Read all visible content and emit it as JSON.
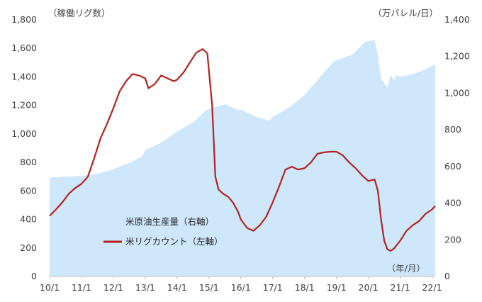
{
  "chart_data": {
    "type": "line+area",
    "left_axis": {
      "label": "（稼働リグ数）",
      "ticks": [
        "0",
        "200",
        "400",
        "600",
        "800",
        "1,000",
        "1,200",
        "1,400",
        "1,600",
        "1,800"
      ],
      "min": 0,
      "max": 1800
    },
    "right_axis": {
      "label": "（万バレル/日）",
      "ticks": [
        "0",
        "200",
        "400",
        "600",
        "800",
        "1,000",
        "1,200",
        "1,400"
      ],
      "min": 0,
      "max": 1400
    },
    "x_axis": {
      "unit_label": "（年/月）",
      "ticks": [
        "10/1",
        "11/1",
        "12/1",
        "13/1",
        "14/1",
        "15/1",
        "16/1",
        "17/1",
        "18/1",
        "19/1",
        "20/1",
        "21/1",
        "22/1"
      ]
    },
    "legend": {
      "placement": "lower-left",
      "items": [
        "米原油生産量（右軸）",
        "米リグカウント（左軸）"
      ]
    },
    "colors": {
      "production_area": "#cfe7fb",
      "rig_line": "#b3221c"
    },
    "series": [
      {
        "name": "米原油生産量（右軸）",
        "axis": "right",
        "kind": "area",
        "points": [
          [
            2010.0,
            540
          ],
          [
            2010.5,
            545
          ],
          [
            2011.0,
            548
          ],
          [
            2011.5,
            560
          ],
          [
            2012.0,
            585
          ],
          [
            2012.5,
            620
          ],
          [
            2012.9,
            655
          ],
          [
            2013.0,
            690
          ],
          [
            2013.5,
            730
          ],
          [
            2014.0,
            790
          ],
          [
            2014.5,
            840
          ],
          [
            2014.9,
            905
          ],
          [
            2015.0,
            915
          ],
          [
            2015.5,
            940
          ],
          [
            2015.9,
            910
          ],
          [
            2016.0,
            910
          ],
          [
            2016.5,
            870
          ],
          [
            2016.9,
            850
          ],
          [
            2017.0,
            870
          ],
          [
            2017.5,
            920
          ],
          [
            2017.9,
            975
          ],
          [
            2018.0,
            990
          ],
          [
            2018.5,
            1090
          ],
          [
            2018.9,
            1170
          ],
          [
            2019.0,
            1180
          ],
          [
            2019.5,
            1210
          ],
          [
            2019.9,
            1280
          ],
          [
            2020.2,
            1290
          ],
          [
            2020.3,
            1210
          ],
          [
            2020.4,
            1080
          ],
          [
            2020.6,
            1030
          ],
          [
            2020.7,
            1100
          ],
          [
            2020.8,
            1070
          ],
          [
            2020.9,
            1100
          ],
          [
            2021.0,
            1090
          ],
          [
            2021.3,
            1100
          ],
          [
            2021.5,
            1110
          ],
          [
            2021.8,
            1130
          ],
          [
            2022.0,
            1150
          ],
          [
            2022.1,
            1160
          ]
        ]
      },
      {
        "name": "米リグカウント（左軸）",
        "axis": "left",
        "kind": "line",
        "points": [
          [
            2010.0,
            425
          ],
          [
            2010.2,
            470
          ],
          [
            2010.4,
            520
          ],
          [
            2010.6,
            580
          ],
          [
            2010.8,
            620
          ],
          [
            2011.0,
            650
          ],
          [
            2011.2,
            700
          ],
          [
            2011.4,
            830
          ],
          [
            2011.6,
            970
          ],
          [
            2011.8,
            1070
          ],
          [
            2012.0,
            1180
          ],
          [
            2012.2,
            1300
          ],
          [
            2012.4,
            1370
          ],
          [
            2012.6,
            1420
          ],
          [
            2012.8,
            1410
          ],
          [
            2013.0,
            1390
          ],
          [
            2013.1,
            1320
          ],
          [
            2013.3,
            1350
          ],
          [
            2013.5,
            1410
          ],
          [
            2013.7,
            1390
          ],
          [
            2013.9,
            1370
          ],
          [
            2014.0,
            1380
          ],
          [
            2014.2,
            1430
          ],
          [
            2014.4,
            1500
          ],
          [
            2014.6,
            1570
          ],
          [
            2014.8,
            1595
          ],
          [
            2014.95,
            1565
          ],
          [
            2015.1,
            1200
          ],
          [
            2015.2,
            700
          ],
          [
            2015.3,
            610
          ],
          [
            2015.45,
            580
          ],
          [
            2015.6,
            560
          ],
          [
            2015.75,
            520
          ],
          [
            2015.9,
            460
          ],
          [
            2016.0,
            400
          ],
          [
            2016.2,
            340
          ],
          [
            2016.4,
            320
          ],
          [
            2016.6,
            360
          ],
          [
            2016.8,
            420
          ],
          [
            2017.0,
            520
          ],
          [
            2017.2,
            630
          ],
          [
            2017.4,
            750
          ],
          [
            2017.6,
            770
          ],
          [
            2017.8,
            750
          ],
          [
            2018.0,
            760
          ],
          [
            2018.2,
            800
          ],
          [
            2018.4,
            860
          ],
          [
            2018.6,
            870
          ],
          [
            2018.8,
            875
          ],
          [
            2019.0,
            875
          ],
          [
            2019.2,
            850
          ],
          [
            2019.4,
            800
          ],
          [
            2019.6,
            760
          ],
          [
            2019.8,
            710
          ],
          [
            2020.0,
            670
          ],
          [
            2020.2,
            680
          ],
          [
            2020.3,
            600
          ],
          [
            2020.4,
            400
          ],
          [
            2020.5,
            250
          ],
          [
            2020.6,
            190
          ],
          [
            2020.7,
            180
          ],
          [
            2020.8,
            195
          ],
          [
            2021.0,
            250
          ],
          [
            2021.2,
            320
          ],
          [
            2021.4,
            360
          ],
          [
            2021.6,
            390
          ],
          [
            2021.8,
            440
          ],
          [
            2022.0,
            470
          ],
          [
            2022.1,
            495
          ]
        ]
      }
    ]
  }
}
